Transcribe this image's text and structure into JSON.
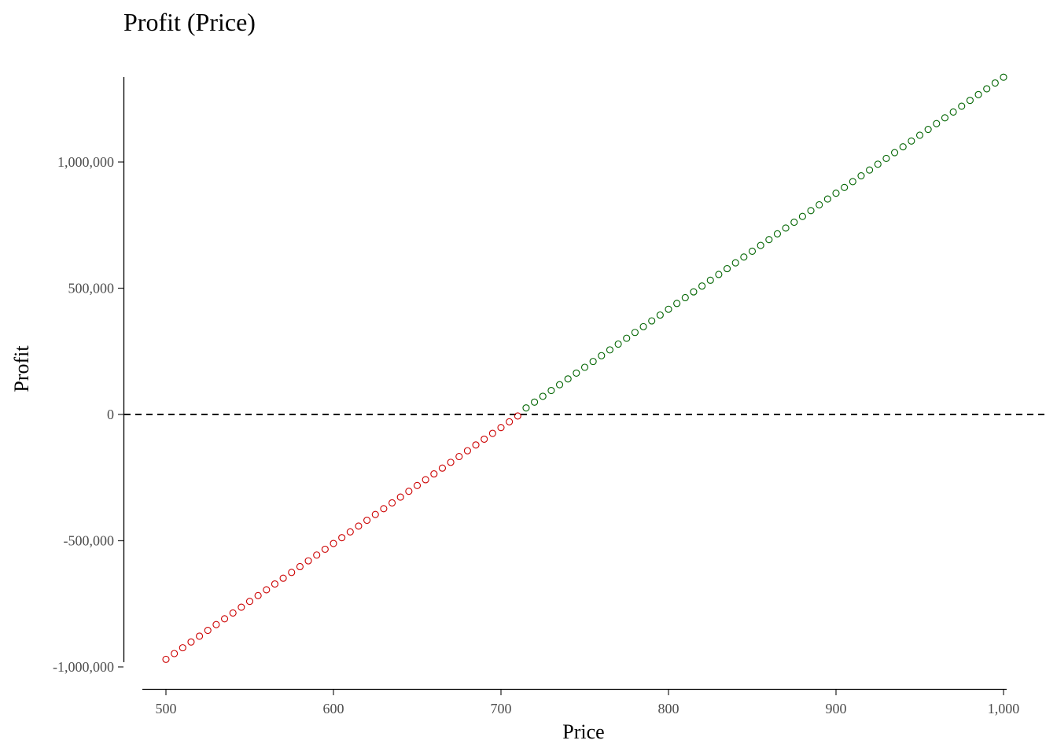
{
  "chart_data": {
    "type": "scatter",
    "title": "Profit (Price)",
    "xlabel": "Price",
    "ylabel": "Profit",
    "xlim": [
      500,
      1000
    ],
    "ylim": [
      -1000000,
      1300000
    ],
    "x_ticks": [
      500,
      600,
      700,
      800,
      900,
      1000
    ],
    "x_tick_labels": [
      "500",
      "600",
      "700",
      "800",
      "900",
      "1,000"
    ],
    "y_ticks": [
      -1000000,
      -500000,
      0,
      500000,
      1000000
    ],
    "y_tick_labels": [
      "-1,000,000",
      "-500,000",
      "0",
      "500,000",
      "1,000,000"
    ],
    "reference_line": {
      "y": 0,
      "style": "dashed",
      "color": "#000000"
    },
    "marker": "open-circle",
    "series": [
      {
        "color": "#cc0000",
        "condition": "profit < 0",
        "x_start": 500,
        "x_end": 710,
        "x_step": 5,
        "points": [
          [
            500,
            -970000
          ],
          [
            710,
            -6000
          ]
        ]
      },
      {
        "color": "#006400",
        "condition": "profit >= 0",
        "x_start": 715,
        "x_end": 1000,
        "x_step": 5,
        "points": [
          [
            715,
            26000
          ],
          [
            1000,
            1336000
          ]
        ]
      }
    ]
  }
}
